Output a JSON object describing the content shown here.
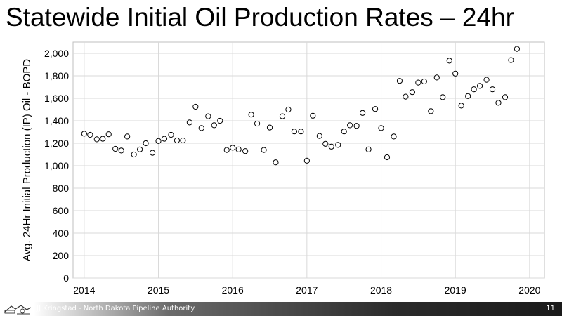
{
  "slide": {
    "title": "Statewide Initial Oil Production Rates – 24hr",
    "footer_text": "JJ Kringstad - North Dakota Pipeline Authority",
    "page_number": "11",
    "logo_icon": "pipeline-authority-logo-icon"
  },
  "chart_data": {
    "type": "scatter",
    "title": "",
    "xlabel": "",
    "ylabel": "Avg. 24Hr Initial Production (IP) Oil - BOPD",
    "xlim": [
      2013.85,
      2020.2
    ],
    "ylim": [
      0,
      2100
    ],
    "x_ticks": [
      2014,
      2015,
      2016,
      2017,
      2018,
      2019,
      2020
    ],
    "x_tick_labels": [
      "2014",
      "2015",
      "2016",
      "2017",
      "2018",
      "2019",
      "2020"
    ],
    "y_ticks": [
      0,
      200,
      400,
      600,
      800,
      1000,
      1200,
      1400,
      1600,
      1800,
      2000
    ],
    "y_tick_labels": [
      "0",
      "200",
      "400",
      "600",
      "800",
      "1,000",
      "1,200",
      "1,400",
      "1,600",
      "1,800",
      "2,000"
    ],
    "grid": true,
    "marker": "open-circle",
    "marker_color": "#000000",
    "grid_color": "#d9d9d9",
    "points": [
      {
        "x": 2014.0,
        "y": 1285
      },
      {
        "x": 2014.08,
        "y": 1275
      },
      {
        "x": 2014.17,
        "y": 1235
      },
      {
        "x": 2014.25,
        "y": 1240
      },
      {
        "x": 2014.33,
        "y": 1280
      },
      {
        "x": 2014.42,
        "y": 1150
      },
      {
        "x": 2014.5,
        "y": 1135
      },
      {
        "x": 2014.58,
        "y": 1260
      },
      {
        "x": 2014.67,
        "y": 1100
      },
      {
        "x": 2014.75,
        "y": 1145
      },
      {
        "x": 2014.83,
        "y": 1200
      },
      {
        "x": 2014.92,
        "y": 1115
      },
      {
        "x": 2015.0,
        "y": 1220
      },
      {
        "x": 2015.08,
        "y": 1240
      },
      {
        "x": 2015.17,
        "y": 1275
      },
      {
        "x": 2015.25,
        "y": 1225
      },
      {
        "x": 2015.33,
        "y": 1225
      },
      {
        "x": 2015.42,
        "y": 1385
      },
      {
        "x": 2015.5,
        "y": 1525
      },
      {
        "x": 2015.58,
        "y": 1335
      },
      {
        "x": 2015.67,
        "y": 1440
      },
      {
        "x": 2015.75,
        "y": 1360
      },
      {
        "x": 2015.83,
        "y": 1400
      },
      {
        "x": 2015.92,
        "y": 1140
      },
      {
        "x": 2016.0,
        "y": 1160
      },
      {
        "x": 2016.08,
        "y": 1145
      },
      {
        "x": 2016.17,
        "y": 1130
      },
      {
        "x": 2016.25,
        "y": 1455
      },
      {
        "x": 2016.33,
        "y": 1375
      },
      {
        "x": 2016.42,
        "y": 1140
      },
      {
        "x": 2016.5,
        "y": 1340
      },
      {
        "x": 2016.58,
        "y": 1030
      },
      {
        "x": 2016.67,
        "y": 1440
      },
      {
        "x": 2016.75,
        "y": 1500
      },
      {
        "x": 2016.83,
        "y": 1305
      },
      {
        "x": 2016.92,
        "y": 1305
      },
      {
        "x": 2017.0,
        "y": 1045
      },
      {
        "x": 2017.08,
        "y": 1445
      },
      {
        "x": 2017.17,
        "y": 1265
      },
      {
        "x": 2017.25,
        "y": 1195
      },
      {
        "x": 2017.33,
        "y": 1170
      },
      {
        "x": 2017.42,
        "y": 1185
      },
      {
        "x": 2017.5,
        "y": 1305
      },
      {
        "x": 2017.58,
        "y": 1360
      },
      {
        "x": 2017.67,
        "y": 1355
      },
      {
        "x": 2017.75,
        "y": 1470
      },
      {
        "x": 2017.83,
        "y": 1145
      },
      {
        "x": 2017.92,
        "y": 1505
      },
      {
        "x": 2018.0,
        "y": 1335
      },
      {
        "x": 2018.08,
        "y": 1075
      },
      {
        "x": 2018.17,
        "y": 1260
      },
      {
        "x": 2018.25,
        "y": 1755
      },
      {
        "x": 2018.33,
        "y": 1615
      },
      {
        "x": 2018.42,
        "y": 1655
      },
      {
        "x": 2018.5,
        "y": 1740
      },
      {
        "x": 2018.58,
        "y": 1750
      },
      {
        "x": 2018.67,
        "y": 1485
      },
      {
        "x": 2018.75,
        "y": 1785
      },
      {
        "x": 2018.83,
        "y": 1610
      },
      {
        "x": 2018.92,
        "y": 1935
      },
      {
        "x": 2019.0,
        "y": 1820
      },
      {
        "x": 2019.08,
        "y": 1535
      },
      {
        "x": 2019.17,
        "y": 1620
      },
      {
        "x": 2019.25,
        "y": 1680
      },
      {
        "x": 2019.33,
        "y": 1710
      },
      {
        "x": 2019.42,
        "y": 1765
      },
      {
        "x": 2019.5,
        "y": 1680
      },
      {
        "x": 2019.58,
        "y": 1560
      },
      {
        "x": 2019.67,
        "y": 1610
      },
      {
        "x": 2019.75,
        "y": 1940
      },
      {
        "x": 2019.83,
        "y": 2040
      }
    ]
  }
}
